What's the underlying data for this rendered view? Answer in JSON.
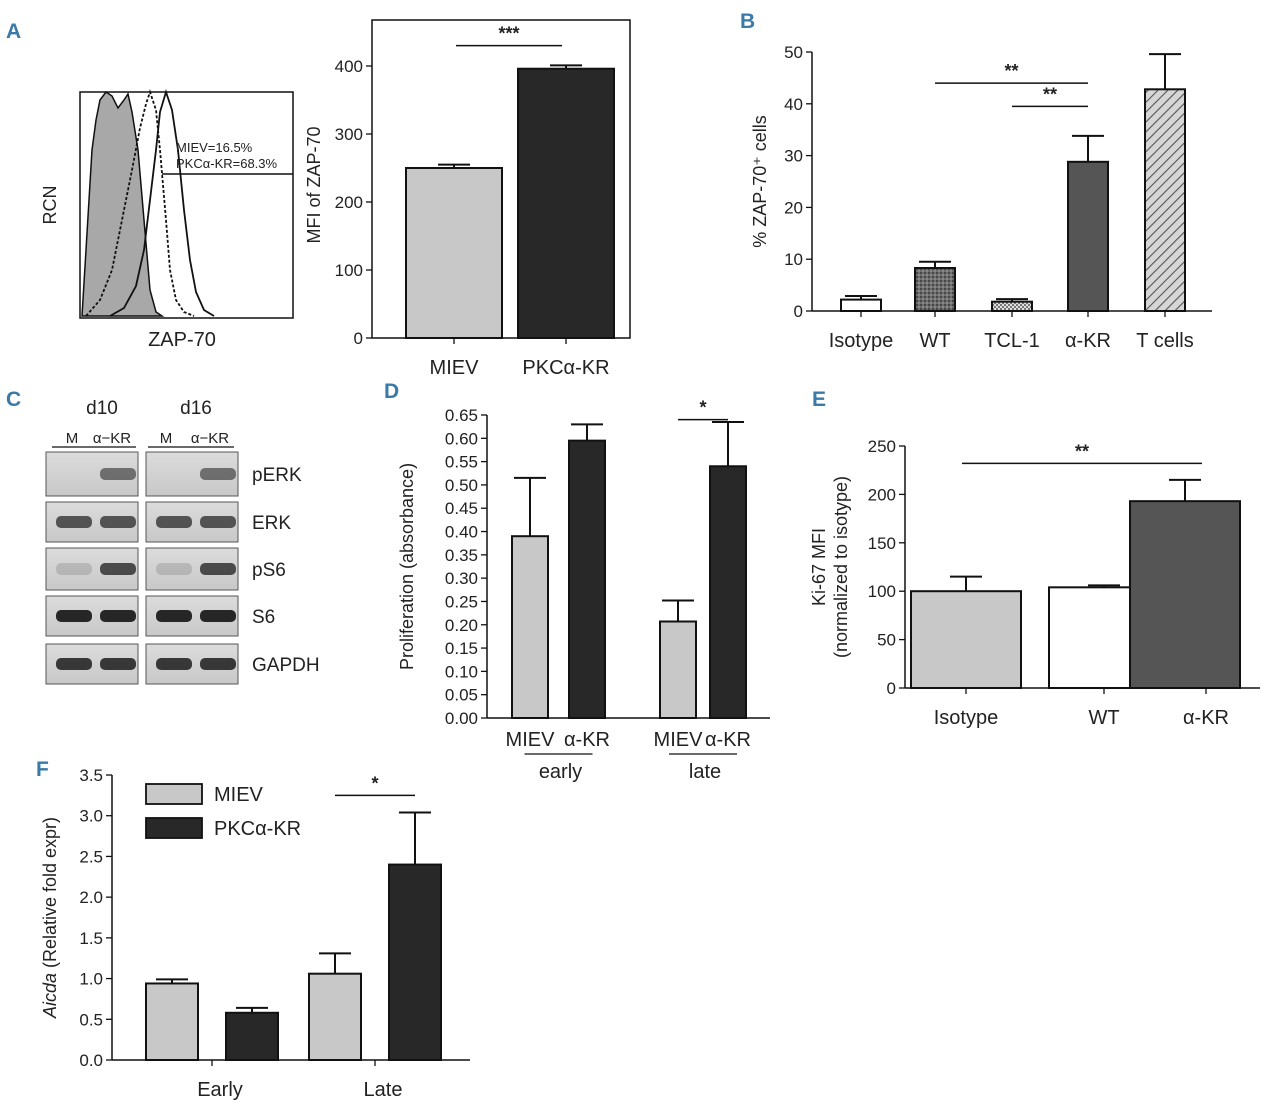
{
  "panels": {
    "A": "A",
    "B": "B",
    "C": "C",
    "D": "D",
    "E": "E",
    "F": "F"
  },
  "hist": {
    "ylabel": "RCN",
    "xlabel": "ZAP-70",
    "annotation_line1": "MIEV=16.5%",
    "annotation_line2": "PKCα-KR=68.3%"
  },
  "blot": {
    "group_d10": "d10",
    "group_d16": "d16",
    "lane_m": "M",
    "lane_kr": "α−KR",
    "rows": [
      "pERK",
      "ERK",
      "pS6",
      "S6",
      "GAPDH"
    ]
  },
  "colors": {
    "light": "#c8c8c8",
    "dark": "#282828",
    "mid": "#555555",
    "white": "#ffffff",
    "label": "#3a7aa8"
  },
  "chart_data": [
    {
      "id": "A",
      "type": "bar",
      "title": "",
      "xlabel": "",
      "ylabel": "MFI of ZAP-70",
      "ylim": [
        0,
        450
      ],
      "yticks": [
        "0",
        "100",
        "200",
        "300",
        "400"
      ],
      "categories": [
        "MIEV",
        "PKCα-KR"
      ],
      "values": [
        250,
        396
      ],
      "errors": [
        5,
        5
      ],
      "fills": [
        "light",
        "dark"
      ],
      "sig": [
        {
          "from": 0,
          "to": 1,
          "y": 430,
          "label": "***"
        }
      ]
    },
    {
      "id": "B",
      "type": "bar",
      "title": "",
      "xlabel": "",
      "ylabel": "% ZAP-70⁺ cells",
      "ylim": [
        0,
        50
      ],
      "yticks": [
        "0",
        "10",
        "20",
        "30",
        "40",
        "50"
      ],
      "categories": [
        "Isotype",
        "WT",
        "TCL-1",
        "α-KR",
        "T cells"
      ],
      "values": [
        2.2,
        8.3,
        1.8,
        28.8,
        42.8
      ],
      "errors": [
        0.7,
        1.2,
        0.5,
        5.0,
        6.8
      ],
      "fills": [
        "white",
        "dotted",
        "checker",
        "mid",
        "hatch"
      ],
      "sig": [
        {
          "from": 1,
          "to": 3,
          "y": 44,
          "label": "**"
        },
        {
          "from": 2,
          "to": 3,
          "y": 39.5,
          "label": "**"
        }
      ]
    },
    {
      "id": "D",
      "type": "bar",
      "title": "",
      "xlabel": "",
      "ylabel": "Proliferation (absorbance)",
      "ylim": [
        0,
        0.65
      ],
      "yticks": [
        "0.00",
        "0.05",
        "0.10",
        "0.15",
        "0.20",
        "0.25",
        "0.30",
        "0.35",
        "0.40",
        "0.45",
        "0.50",
        "0.55",
        "0.60",
        "0.65"
      ],
      "categories": [
        "MIEV",
        "α-KR",
        "MIEV",
        "α-KR"
      ],
      "groups": [
        "early",
        "late"
      ],
      "values": [
        0.39,
        0.595,
        0.207,
        0.54
      ],
      "errors": [
        0.125,
        0.035,
        0.045,
        0.095
      ],
      "fills": [
        "light",
        "dark",
        "light",
        "dark"
      ],
      "sig": [
        {
          "from": 2,
          "to": 3,
          "y": 0.64,
          "label": "*"
        }
      ]
    },
    {
      "id": "E",
      "type": "bar",
      "title": "",
      "xlabel": "",
      "ylabel": "Ki-67 MFI",
      "ylabel2": "(normalized to isotype)",
      "ylim": [
        0,
        250
      ],
      "yticks": [
        "0",
        "50",
        "100",
        "150",
        "200",
        "250"
      ],
      "categories": [
        "Isotype",
        "WT",
        "α-KR"
      ],
      "values": [
        100,
        104,
        193
      ],
      "errors": [
        15,
        2,
        22
      ],
      "fills": [
        "light",
        "white",
        "mid"
      ],
      "sig": [
        {
          "from": 0,
          "to": 2,
          "y": 232,
          "label": "**"
        }
      ]
    },
    {
      "id": "F",
      "type": "bar",
      "title": "",
      "xlabel": "",
      "ylabel_italic": "Aicda",
      "ylabel": " (Relative fold expr)",
      "ylim": [
        0,
        3.5
      ],
      "yticks": [
        "0.0",
        "0.5",
        "1.0",
        "1.5",
        "2.0",
        "2.5",
        "3.0",
        "3.5"
      ],
      "categories": [
        "Early",
        "Late"
      ],
      "series": [
        {
          "name": "MIEV",
          "values": [
            0.94,
            1.06
          ],
          "errors": [
            0.05,
            0.25
          ],
          "fill": "light"
        },
        {
          "name": "PKCα-KR",
          "values": [
            0.58,
            2.4
          ],
          "errors": [
            0.06,
            0.64
          ],
          "fill": "dark"
        }
      ],
      "sig": [
        {
          "from": 2,
          "to": 3,
          "y": 3.25,
          "label": "*"
        }
      ]
    }
  ]
}
